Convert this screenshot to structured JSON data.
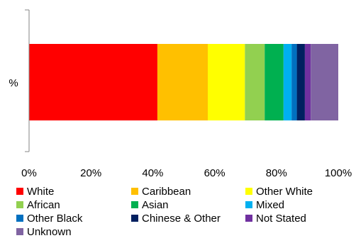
{
  "chart_data": {
    "type": "bar",
    "orientation": "horizontal",
    "stacked": true,
    "categories": [
      "%"
    ],
    "series": [
      {
        "name": "White",
        "color": "#ff0000",
        "values": [
          41.5
        ]
      },
      {
        "name": "Caribbean",
        "color": "#ffc000",
        "values": [
          16.3
        ]
      },
      {
        "name": "Other White",
        "color": "#ffff00",
        "values": [
          12.0
        ]
      },
      {
        "name": "African",
        "color": "#92d050",
        "values": [
          6.4
        ]
      },
      {
        "name": "Asian",
        "color": "#00b050",
        "values": [
          6.1
        ]
      },
      {
        "name": "Mixed",
        "color": "#00b0f0",
        "values": [
          2.6
        ]
      },
      {
        "name": "Other Black",
        "color": "#0070c0",
        "values": [
          1.7
        ]
      },
      {
        "name": "Chinese & Other",
        "color": "#002060",
        "values": [
          2.6
        ]
      },
      {
        "name": "Not Stated",
        "color": "#7030a0",
        "values": [
          1.9
        ]
      },
      {
        "name": "Unknown",
        "color": "#8064a2",
        "values": [
          8.9
        ]
      }
    ],
    "x_ticks": [
      "0%",
      "20%",
      "40%",
      "60%",
      "80%",
      "100%"
    ],
    "xlim": [
      0,
      100
    ],
    "grid": false,
    "legend_position": "bottom"
  }
}
